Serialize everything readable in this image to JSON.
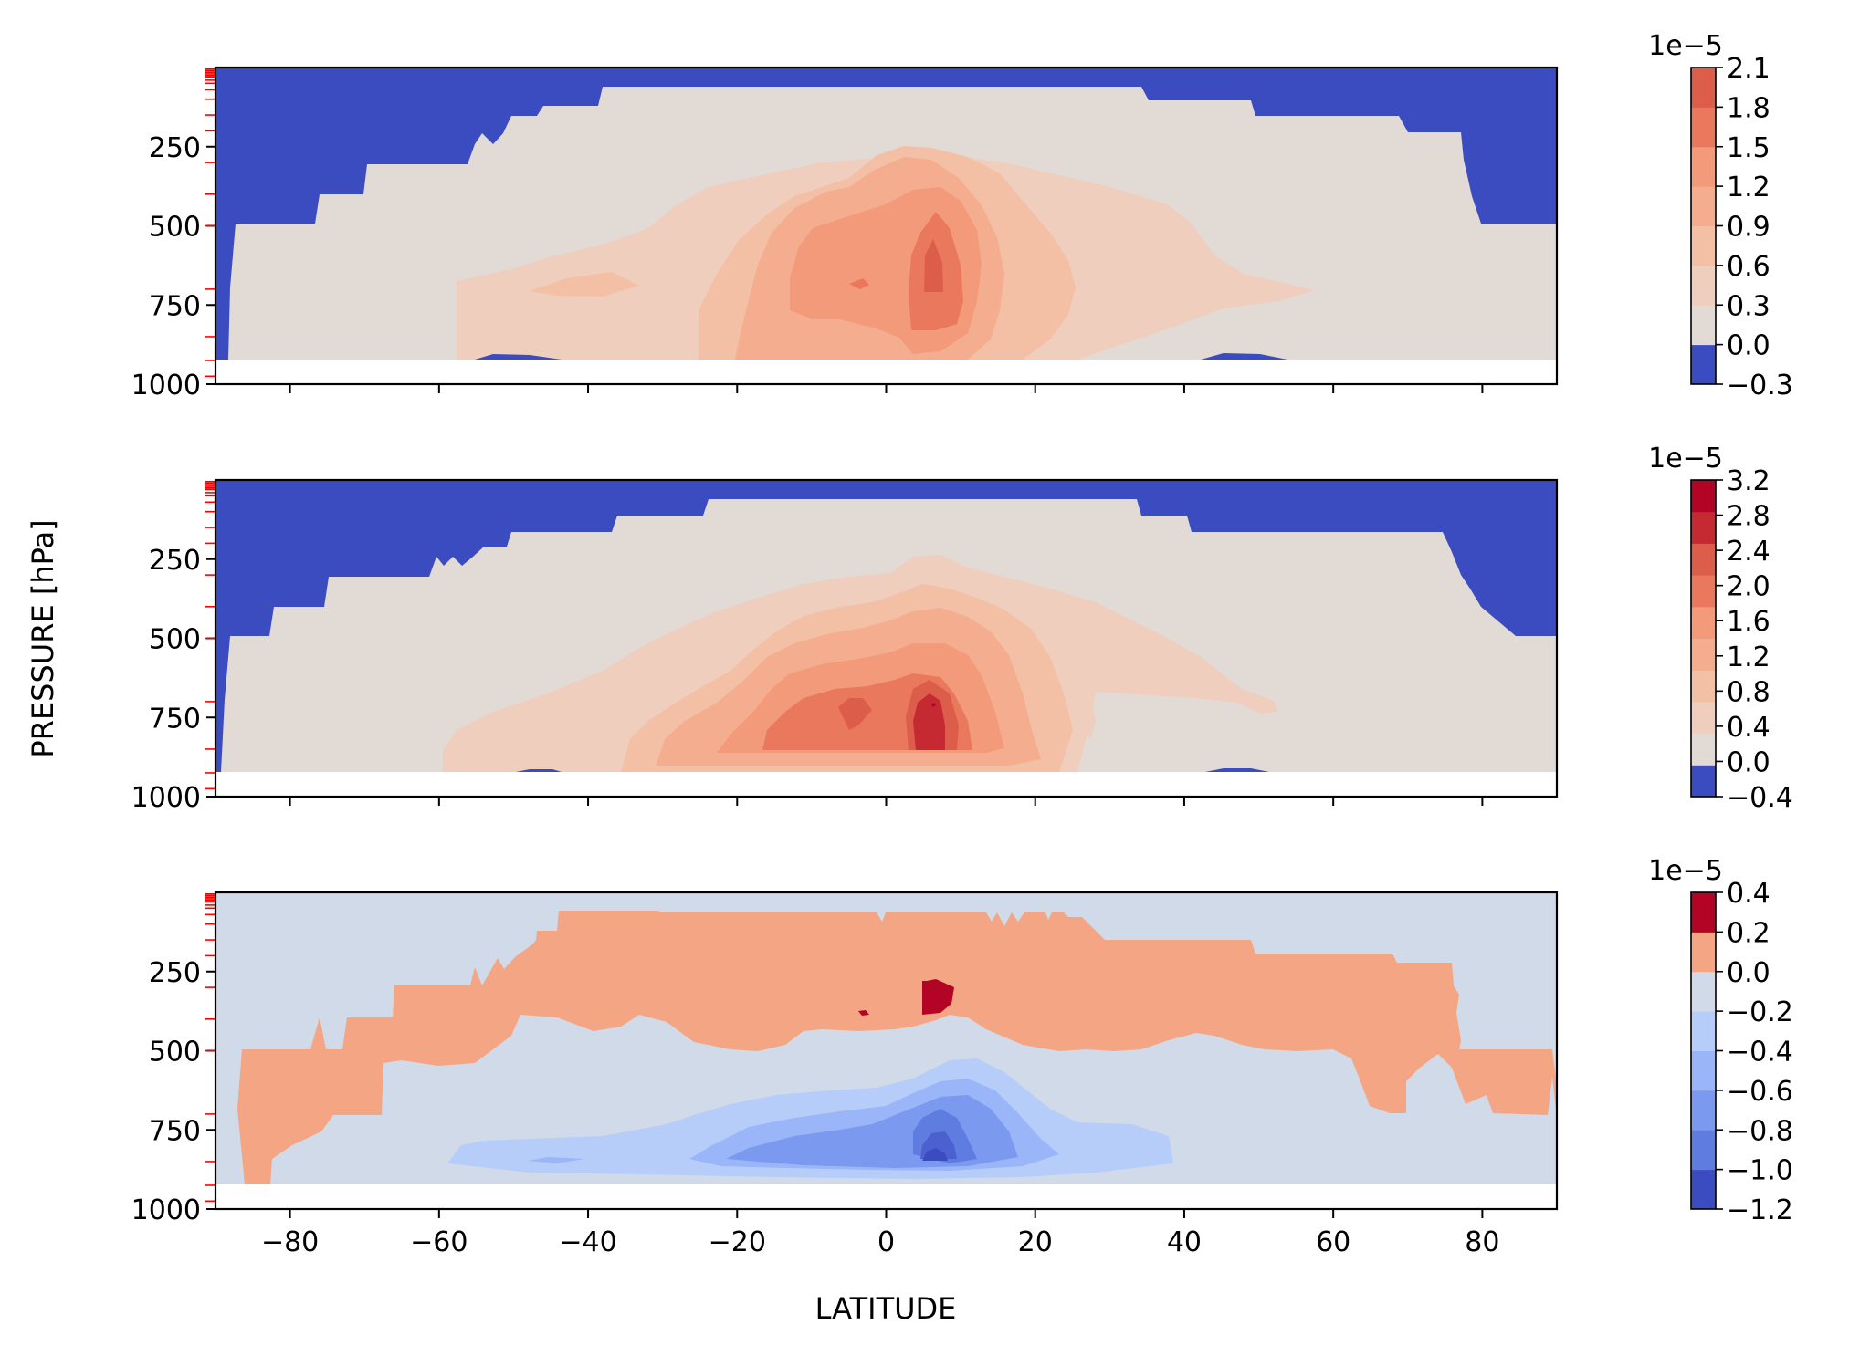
{
  "chart_data": {
    "type": "contour",
    "xlabel": "LATITUDE",
    "ylabel": "PRESSURE [hPa]",
    "xlim": [
      -90,
      90
    ],
    "ylim": [
      1000,
      0
    ],
    "x_ticks": [
      -80,
      -60,
      -40,
      -20,
      0,
      20,
      40,
      60,
      80
    ],
    "x_tick_labels": [
      "−80",
      "−60",
      "−40",
      "−20",
      "0",
      "20",
      "40",
      "60",
      "80"
    ],
    "y_ticks": [
      250,
      500,
      750,
      1000
    ],
    "y_tick_labels": [
      "250",
      "500",
      "750",
      "1000"
    ],
    "model_level_markers_hPa": [
      5,
      10,
      15,
      20,
      25,
      30,
      40,
      50,
      70,
      100,
      150,
      200,
      300,
      400,
      500,
      700,
      850,
      925,
      975
    ],
    "surface_limit_hPa": 925,
    "panels": [
      {
        "name": "top",
        "colorbar_multiplier": "1e−5",
        "levels": [
          -0.3,
          0.0,
          0.3,
          0.6,
          0.9,
          1.2,
          1.5,
          1.8,
          2.1
        ],
        "level_labels": [
          "−0.3",
          "0.0",
          "0.3",
          "0.6",
          "0.9",
          "1.2",
          "1.5",
          "1.8",
          "2.1"
        ],
        "colors": [
          "#3b4cc0",
          "#e2dad5",
          "#efcebd",
          "#f3c0a6",
          "#f4ad8e",
          "#f29a79",
          "#e9785d",
          "#dc5d4a"
        ],
        "max_value": 2.1,
        "max_location": {
          "lat": 6,
          "pressure_hPa": 650
        },
        "secondary_max_location": {
          "lat": -5,
          "pressure_hPa": 700
        }
      },
      {
        "name": "middle",
        "colorbar_multiplier": "1e−5",
        "levels": [
          -0.4,
          0.0,
          0.4,
          0.8,
          1.2,
          1.6,
          2.0,
          2.4,
          2.8,
          3.2
        ],
        "level_labels": [
          "−0.4",
          "0.0",
          "0.4",
          "0.8",
          "1.2",
          "1.6",
          "2.0",
          "2.4",
          "2.8",
          "3.2"
        ],
        "colors": [
          "#3b4cc0",
          "#e2dad5",
          "#efcebd",
          "#f3c0a6",
          "#f4ad8e",
          "#f29a79",
          "#e9785d",
          "#dc5d4a",
          "#c52a33",
          "#b40426"
        ],
        "max_value": 3.2,
        "max_location": {
          "lat": 6,
          "pressure_hPa": 700
        },
        "secondary_max_location": {
          "lat": -5,
          "pressure_hPa": 700
        }
      },
      {
        "name": "bottom",
        "colorbar_multiplier": "1e−5",
        "levels": [
          -1.2,
          -1.0,
          -0.8,
          -0.6,
          -0.4,
          -0.2,
          0.0,
          0.2,
          0.4
        ],
        "level_labels": [
          "−1.2",
          "−1.0",
          "−0.8",
          "−0.6",
          "−0.4",
          "−0.2",
          "0.0",
          "0.2",
          "0.4"
        ],
        "colors": [
          "#3b4cc0",
          "#5f7de0",
          "#7b99ee",
          "#9bb6f8",
          "#b6cdf9",
          "#d0dae8",
          "#f4a584",
          "#b40426"
        ],
        "min_value": -1.2,
        "min_location": {
          "lat": 5,
          "pressure_hPa": 830
        },
        "max_value": 0.4,
        "max_location": {
          "lat": 7,
          "pressure_hPa": 320
        }
      }
    ]
  }
}
